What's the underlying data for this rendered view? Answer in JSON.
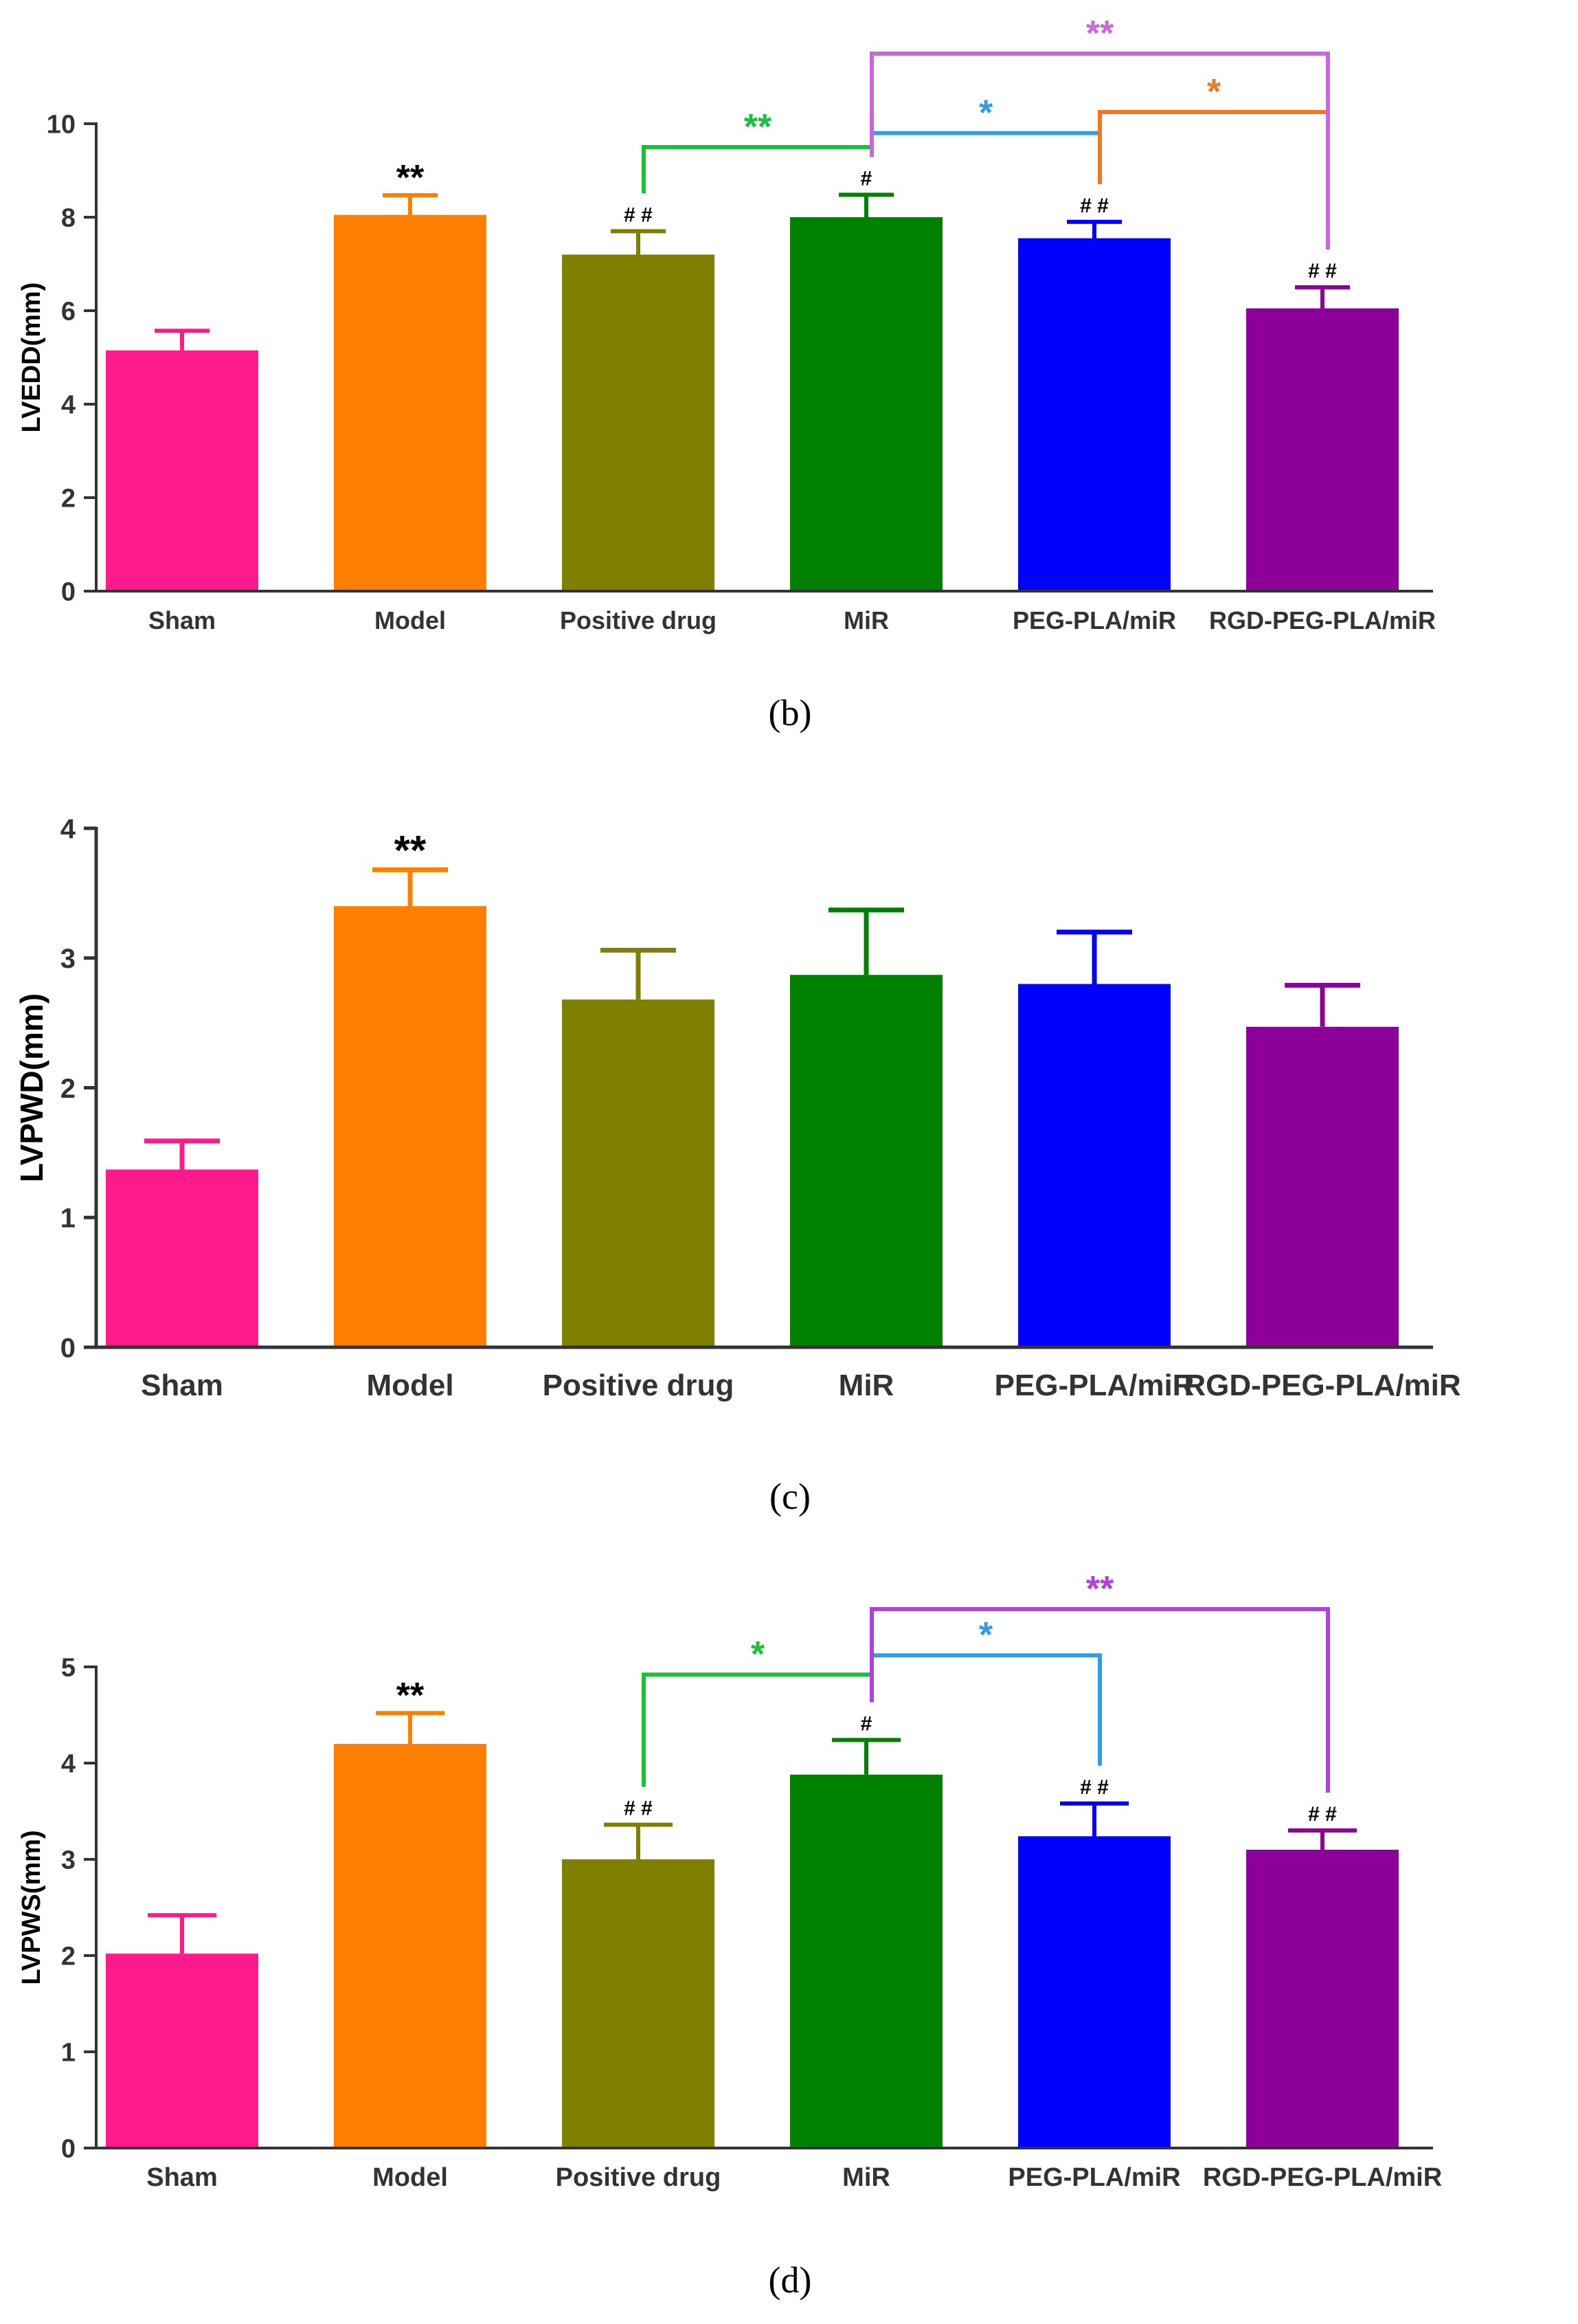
{
  "chart_data": [
    {
      "panel": "(b)",
      "type": "bar",
      "ylabel": "LVEDD(mm)",
      "ylim": [
        0,
        10
      ],
      "yticks": [
        0,
        2,
        4,
        6,
        8,
        10
      ],
      "categories": [
        "Sham",
        "Model",
        "Positive drug",
        "MiR",
        "PEG-PLA/miR",
        "RGD-PEG-PLA/miR"
      ],
      "values": [
        5.15,
        8.05,
        7.2,
        8.0,
        7.55,
        6.05
      ],
      "errors": [
        0.42,
        0.42,
        0.5,
        0.48,
        0.35,
        0.45
      ],
      "colors": [
        "#ff1a8c",
        "#ff8000",
        "#808000",
        "#008000",
        "#0000ff",
        "#8c0099"
      ],
      "bar_annotations": [
        "",
        "**",
        "# #",
        "#",
        "# #",
        "# #"
      ],
      "brackets": [
        {
          "from": 2,
          "to": 3,
          "label": "**",
          "color": "#19c03a",
          "level": 9.5
        },
        {
          "from": 3,
          "to": 4,
          "label": "*",
          "color": "#2e9fe6",
          "level": 9.8
        },
        {
          "from": 4,
          "to": 5,
          "label": "*",
          "color": "#f07820",
          "level": 10.25
        },
        {
          "from": 3,
          "to": 5,
          "label": "**",
          "color": "#cc66dd",
          "level": 11.5
        }
      ]
    },
    {
      "panel": "(c)",
      "type": "bar",
      "ylabel": "LVPWD(mm)",
      "ylim": [
        0,
        4
      ],
      "yticks": [
        0,
        1,
        2,
        3,
        4
      ],
      "categories": [
        "Sham",
        "Model",
        "Positive drug",
        "MiR",
        "PEG-PLA/miR",
        "RGD-PEG-PLA/miR"
      ],
      "values": [
        1.37,
        3.4,
        2.68,
        2.87,
        2.8,
        2.47
      ],
      "errors": [
        0.22,
        0.28,
        0.38,
        0.5,
        0.4,
        0.32
      ],
      "colors": [
        "#ff1a8c",
        "#ff8000",
        "#808000",
        "#008000",
        "#0000ff",
        "#8c0099"
      ],
      "bar_annotations": [
        "",
        "**",
        "",
        "",
        "",
        ""
      ],
      "brackets": []
    },
    {
      "panel": "(d)",
      "type": "bar",
      "ylabel": "LVPWS(mm)",
      "ylim": [
        0,
        5
      ],
      "yticks": [
        0,
        1,
        2,
        3,
        4,
        5
      ],
      "categories": [
        "Sham",
        "Model",
        "Positive drug",
        "MiR",
        "PEG-PLA/miR",
        "RGD-PEG-PLA/miR"
      ],
      "values": [
        2.02,
        4.2,
        3.0,
        3.88,
        3.24,
        3.1
      ],
      "errors": [
        0.4,
        0.32,
        0.36,
        0.36,
        0.34,
        0.2
      ],
      "colors": [
        "#ff1a8c",
        "#ff8000",
        "#808000",
        "#008000",
        "#0000ff",
        "#8c0099"
      ],
      "bar_annotations": [
        "",
        "**",
        "# #",
        "#",
        "# #",
        "# #"
      ],
      "brackets": [
        {
          "from": 2,
          "to": 3,
          "label": "*",
          "color": "#19c03a",
          "level": 4.92
        },
        {
          "from": 3,
          "to": 4,
          "label": "*",
          "color": "#2e9fe6",
          "level": 5.12
        },
        {
          "from": 3,
          "to": 5,
          "label": "**",
          "color": "#b040e0",
          "level": 5.6
        }
      ]
    }
  ]
}
